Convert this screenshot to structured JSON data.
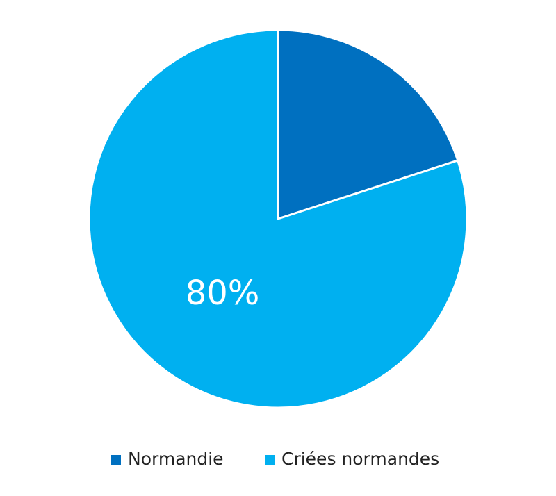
{
  "chart_data": {
    "type": "pie",
    "categories": [
      "Normandie",
      "Criées normandes"
    ],
    "values": [
      20,
      80
    ],
    "value_labels": [
      null,
      "80%"
    ],
    "colors": [
      "#0070c0",
      "#00b0f0"
    ],
    "legend": "bottom"
  }
}
